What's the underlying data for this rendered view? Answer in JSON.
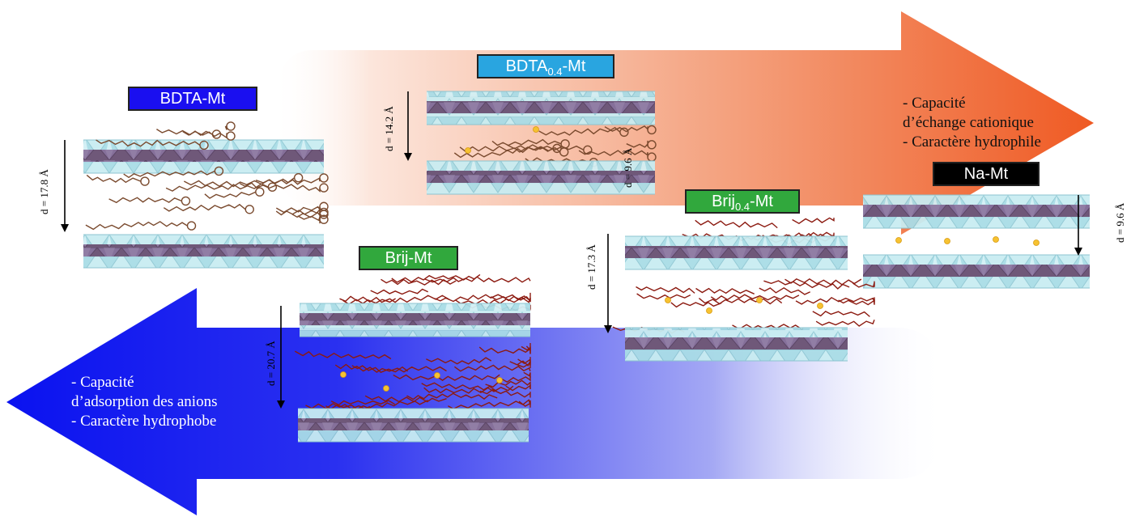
{
  "colors": {
    "orange_arrow": "#f05a24",
    "blue_arrow": "#0a14f0",
    "silicate_layer": "#bfe7ee",
    "octahedral_layer": "#6e5577",
    "surfactant": "#7a4a2e",
    "brij": "#8c1a10",
    "cation": "#f6c231"
  },
  "labels": {
    "bdta_mt": "BDTA-Mt",
    "bdta04_main": "BDTA",
    "bdta04_sub": "0.4",
    "bdta04_suffix": "-Mt",
    "brij_mt": "Brij-Mt",
    "brij04_main": "Brij",
    "brij04_sub": "0.4",
    "brij04_suffix": "-Mt",
    "na_mt": "Na-Mt"
  },
  "spacings": {
    "bdta_mt": "d = 17.8 Å",
    "bdta04_outer": "d = 14.2 Å",
    "bdta04_inner": "d = 9.6 Å",
    "brij_mt": "d = 20.7 Å",
    "brij04": "d = 17.3 Å",
    "na_mt": "d = 9.6 Å"
  },
  "properties": {
    "orange": [
      "- Capacité",
      "d’échange cationique",
      "- Caractère hydrophile"
    ],
    "blue": [
      "- Capacité",
      "d’adsorption des anions",
      "- Caractère hydrophobe"
    ]
  }
}
